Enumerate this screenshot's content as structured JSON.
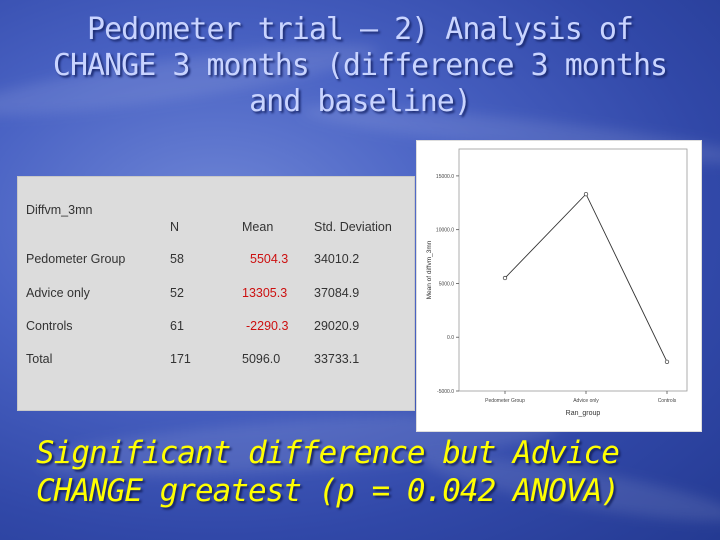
{
  "title": {
    "line1": "Pedometer trial – 2) Analysis of",
    "line2": "CHANGE 3 months (difference 3 months",
    "line3": "and baseline)"
  },
  "table": {
    "variable": "Diffvm_3mn",
    "headers": [
      "N",
      "Mean",
      "Std. Deviation"
    ],
    "rows": [
      {
        "label": "Pedometer Group",
        "n": "58",
        "mean": "5504.3",
        "sd": "34010.2"
      },
      {
        "label": "Advice only",
        "n": "52",
        "mean": "13305.3",
        "sd": "37084.9"
      },
      {
        "label": "Controls",
        "n": "61",
        "mean": "-2290.3",
        "sd": "29020.9"
      },
      {
        "label": "Total",
        "n": "171",
        "mean": "5096.0",
        "sd": "33733.1"
      }
    ],
    "mean_color": "#cc1010"
  },
  "chart_data": {
    "type": "line",
    "categories": [
      "Pedometer Group",
      "Advice only",
      "Controls"
    ],
    "values": [
      5504.3,
      13305.3,
      -2290.3
    ],
    "ylabel": "Mean of diffvm_3mn",
    "xlabel": "Ran_group",
    "yticks": [
      "15000.0",
      "10000.0",
      "5000.0",
      "0.0",
      "-5000.0"
    ],
    "ylim": [
      -5000,
      17500
    ],
    "grid": false
  },
  "footer": {
    "line1": "Significant difference but Advice",
    "line2": "CHANGE greatest (p = 0.042 ANOVA)"
  },
  "colors": {
    "background": "#3d55b8",
    "title": "#c9d4ff",
    "footer": "#ffff00",
    "mean_value": "#cc1010"
  }
}
